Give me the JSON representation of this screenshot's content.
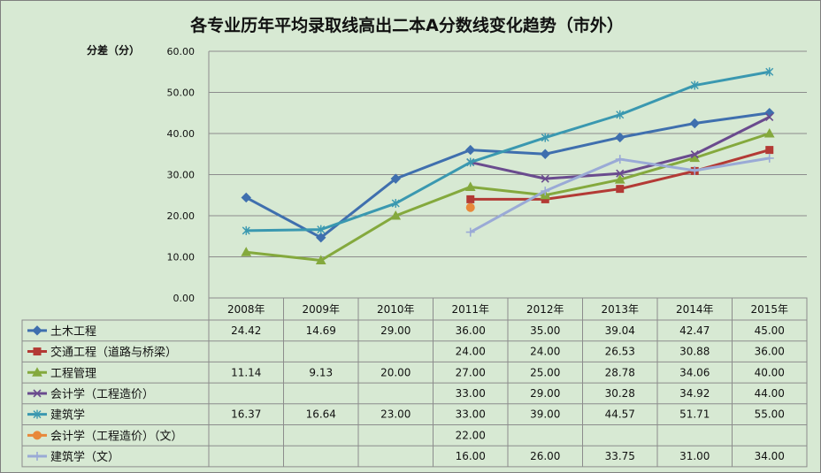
{
  "chart_data": {
    "type": "line",
    "title": "各专业历年平均录取线高出二本A分数线变化趋势（市外）",
    "ylabel": "分差（分）",
    "ylim": [
      0,
      60
    ],
    "yticks": [
      "0.00",
      "10.00",
      "20.00",
      "30.00",
      "40.00",
      "50.00",
      "60.00"
    ],
    "grid": true,
    "legend": "data-table-left",
    "categories": [
      "2008年",
      "2009年",
      "2010年",
      "2011年",
      "2012年",
      "2013年",
      "2014年",
      "2015年"
    ],
    "series": [
      {
        "name": "土木工程",
        "color": "#3f6fae",
        "marker": "diamond",
        "values": [
          24.42,
          14.69,
          29.0,
          36.0,
          35.0,
          39.04,
          42.47,
          45.0
        ],
        "labels": [
          "24.42",
          "14.69",
          "29.00",
          "36.00",
          "35.00",
          "39.04",
          "42.47",
          "45.00"
        ]
      },
      {
        "name": "交通工程（道路与桥梁）",
        "color": "#b33a35",
        "marker": "square",
        "values": [
          null,
          null,
          null,
          24.0,
          24.0,
          26.53,
          30.88,
          36.0
        ],
        "labels": [
          "",
          "",
          "",
          "24.00",
          "24.00",
          "26.53",
          "30.88",
          "36.00"
        ]
      },
      {
        "name": "工程管理",
        "color": "#84a93d",
        "marker": "triangle",
        "values": [
          11.14,
          9.13,
          20.0,
          27.0,
          25.0,
          28.78,
          34.06,
          40.0
        ],
        "labels": [
          "11.14",
          "9.13",
          "20.00",
          "27.00",
          "25.00",
          "28.78",
          "34.06",
          "40.00"
        ]
      },
      {
        "name": "会计学（工程造价）",
        "color": "#6a4b8e",
        "marker": "x",
        "values": [
          null,
          null,
          null,
          33.0,
          29.0,
          30.28,
          34.92,
          44.0
        ],
        "labels": [
          "",
          "",
          "",
          "33.00",
          "29.00",
          "30.28",
          "34.92",
          "44.00"
        ]
      },
      {
        "name": "建筑学",
        "color": "#3a98b0",
        "marker": "star",
        "values": [
          16.37,
          16.64,
          23.0,
          33.0,
          39.0,
          44.57,
          51.71,
          55.0
        ],
        "labels": [
          "16.37",
          "16.64",
          "23.00",
          "33.00",
          "39.00",
          "44.57",
          "51.71",
          "55.00"
        ]
      },
      {
        "name": "会计学（工程造价）（文）",
        "color": "#e8883a",
        "marker": "circle",
        "values": [
          null,
          null,
          null,
          22.0,
          null,
          null,
          null,
          null
        ],
        "labels": [
          "",
          "",
          "",
          "22.00",
          "",
          "",
          "",
          ""
        ]
      },
      {
        "name": "建筑学（文）",
        "color": "#9aaad6",
        "marker": "plus",
        "values": [
          null,
          null,
          null,
          16.0,
          26.0,
          33.75,
          31.0,
          34.0
        ],
        "labels": [
          "",
          "",
          "",
          "16.00",
          "26.00",
          "33.75",
          "31.00",
          "34.00"
        ]
      }
    ]
  }
}
